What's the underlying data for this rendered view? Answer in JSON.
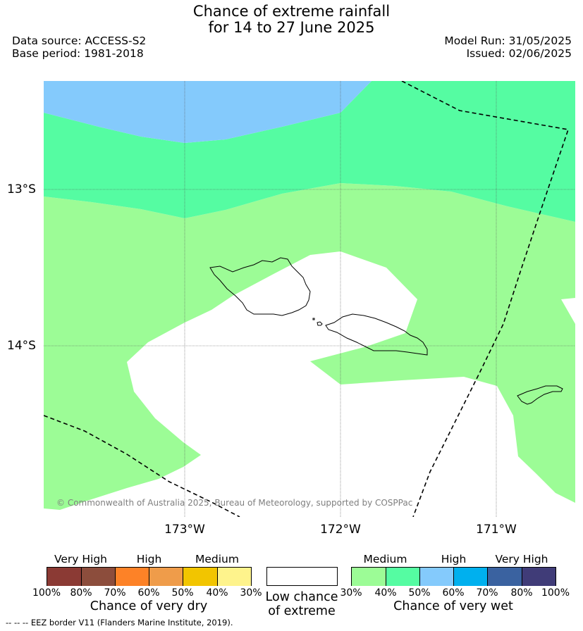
{
  "title": {
    "line1": "Chance of extreme rainfall",
    "line2": "for 14 to 27 June 2025"
  },
  "meta": {
    "data_source": "Data source: ACCESS-S2",
    "base_period": "Base period: 1981-2018",
    "model_run": "Model Run: 31/05/2025",
    "issued": "Issued: 02/06/2025"
  },
  "map": {
    "lat_labels": [
      "13°S",
      "14°S"
    ],
    "lon_labels": [
      "173°W",
      "172°W",
      "171°W"
    ],
    "copyright": "© Commonwealth of Australia 2025, Bureau of Meteorology, supported by COSPPac",
    "colors": {
      "medium_30_40": "#9cfc96",
      "medium_40_50": "#55fca2",
      "high_50_60": "#84cafc",
      "background": "#ffffff"
    }
  },
  "legend": {
    "dry": {
      "headers": [
        "Very High",
        "High",
        "Medium"
      ],
      "colors": [
        "#8b3a34",
        "#8c4d3c",
        "#fd8227",
        "#ef9c4a",
        "#f2c500",
        "#fef38c"
      ],
      "ticks": [
        "100%",
        "80%",
        "70%",
        "60%",
        "50%",
        "40%",
        "30%"
      ],
      "caption": "Chance of very dry"
    },
    "low": {
      "caption_line1": "Low chance",
      "caption_line2": "of extreme"
    },
    "wet": {
      "headers": [
        "Medium",
        "High",
        "Very High"
      ],
      "colors": [
        "#9cfc96",
        "#55fca2",
        "#84cafc",
        "#00b0ee",
        "#3a62a0",
        "#403c78"
      ],
      "ticks": [
        "30%",
        "40%",
        "50%",
        "60%",
        "70%",
        "80%",
        "100%"
      ],
      "caption": "Chance of very wet"
    }
  },
  "footnote": "--  --  -- EEZ border V11 (Flanders Marine Institute, 2019)."
}
